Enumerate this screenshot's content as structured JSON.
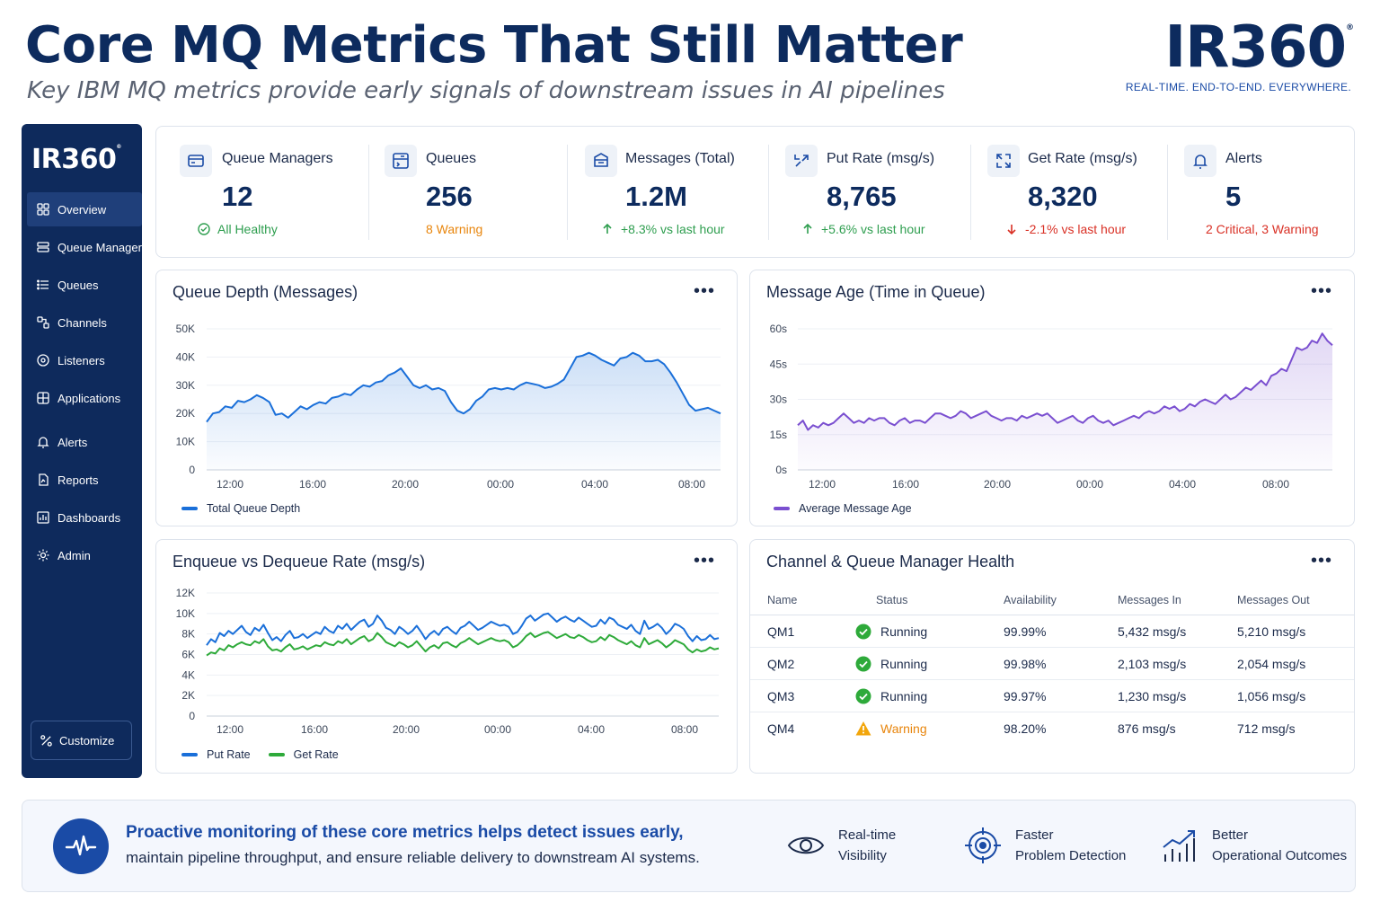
{
  "header": {
    "title": "Core MQ Metrics That Still Matter",
    "subtitle": "Key IBM MQ metrics provide early signals of downstream issues in AI pipelines",
    "brand": "IR360",
    "tagline": "REAL-TIME. END-TO-END. EVERYWHERE."
  },
  "sidebar": {
    "logo": "IR360",
    "items": [
      {
        "label": "Overview",
        "icon": "overview-icon",
        "active": true
      },
      {
        "label": "Queue Managers",
        "icon": "queue-managers-icon"
      },
      {
        "label": "Queues",
        "icon": "queues-icon"
      },
      {
        "label": "Channels",
        "icon": "channels-icon"
      },
      {
        "label": "Listeners",
        "icon": "listeners-icon"
      },
      {
        "label": "Applications",
        "icon": "applications-icon"
      },
      {
        "label": "Alerts",
        "icon": "bell-icon"
      },
      {
        "label": "Reports",
        "icon": "reports-icon"
      },
      {
        "label": "Dashboards",
        "icon": "dashboards-icon"
      },
      {
        "label": "Admin",
        "icon": "gear-icon"
      }
    ],
    "customize": "Customize"
  },
  "kpis": [
    {
      "label": "Queue Managers",
      "value": "12",
      "status": "All Healthy",
      "status_color": "#2e9e4f",
      "status_icon": "check-circle-icon"
    },
    {
      "label": "Queues",
      "value": "256",
      "status": "8 Warning",
      "status_color": "#e8850c",
      "status_icon": ""
    },
    {
      "label": "Messages (Total)",
      "value": "1.2M",
      "status": "+8.3% vs last hour",
      "status_color": "#2e9e4f",
      "status_icon": "arrow-up-icon"
    },
    {
      "label": "Put Rate (msg/s)",
      "value": "8,765",
      "status": "+5.6% vs last hour",
      "status_color": "#2e9e4f",
      "status_icon": "arrow-up-icon"
    },
    {
      "label": "Get Rate (msg/s)",
      "value": "8,320",
      "status": "-2.1% vs last hour",
      "status_color": "#d93025",
      "status_icon": "arrow-down-icon"
    },
    {
      "label": "Alerts",
      "value": "5",
      "status": "2 Critical, 3 Warning",
      "status_color": "#d93025",
      "status_icon": ""
    }
  ],
  "colors": {
    "navy": "#0e2a5c",
    "blue": "#1a6fd9",
    "purple": "#7a4fd0",
    "green": "#2eaa3a",
    "warning": "#f2a60c"
  },
  "chart_data": [
    {
      "type": "area",
      "title": "Queue Depth (Messages)",
      "x_ticks": [
        "12:00",
        "16:00",
        "20:00",
        "00:00",
        "04:00",
        "08:00"
      ],
      "y_ticks": [
        "0",
        "10K",
        "20K",
        "30K",
        "40K",
        "50K"
      ],
      "ylim": [
        0,
        50000
      ],
      "series": [
        {
          "name": "Total Queue Depth",
          "color": "#1a6fd9",
          "values": [
            17000,
            20000,
            20500,
            22500,
            22000,
            24500,
            24000,
            25000,
            26500,
            25500,
            24000,
            19500,
            20000,
            18500,
            20500,
            22500,
            21500,
            23000,
            24000,
            23500,
            25500,
            26000,
            27000,
            26500,
            28500,
            30000,
            29500,
            31000,
            31500,
            33500,
            34500,
            36000,
            33000,
            30000,
            29000,
            30000,
            28500,
            29000,
            28000,
            24000,
            21000,
            20000,
            21500,
            24500,
            26000,
            28500,
            29000,
            28500,
            29000,
            28500,
            30000,
            31000,
            30500,
            30000,
            29000,
            29500,
            30500,
            32000,
            36000,
            40000,
            40500,
            41500,
            40500,
            39000,
            38000,
            37000,
            39500,
            40000,
            41500,
            40500,
            38500,
            38500,
            39000,
            37500,
            34500,
            31000,
            27000,
            23000,
            21000,
            21500,
            22000,
            21000,
            20000
          ]
        }
      ]
    },
    {
      "type": "area",
      "title": "Message Age (Time in Queue)",
      "x_ticks": [
        "12:00",
        "16:00",
        "20:00",
        "00:00",
        "04:00",
        "08:00"
      ],
      "y_ticks": [
        "0s",
        "15s",
        "30s",
        "45s",
        "60s"
      ],
      "ylim": [
        0,
        60
      ],
      "series": [
        {
          "name": "Average Message Age",
          "color": "#7a4fd0",
          "values": [
            19,
            21,
            17,
            19,
            18,
            20,
            19,
            20,
            22,
            24,
            22,
            20,
            21,
            20,
            22,
            21,
            22,
            22,
            20,
            19,
            21,
            22,
            20,
            21,
            21,
            20,
            22,
            24,
            24,
            23,
            22,
            23,
            25,
            24,
            22,
            23,
            24,
            25,
            23,
            22,
            21,
            22,
            22,
            21,
            23,
            22,
            23,
            24,
            23,
            24,
            22,
            20,
            21,
            22,
            23,
            21,
            20,
            22,
            23,
            21,
            20,
            21,
            19,
            20,
            21,
            22,
            23,
            22,
            24,
            25,
            24,
            25,
            27,
            26,
            27,
            25,
            26,
            28,
            27,
            29,
            30,
            29,
            28,
            30,
            32,
            30,
            31,
            33,
            35,
            34,
            36,
            38,
            36,
            40,
            41,
            43,
            42,
            47,
            52,
            51,
            52,
            55,
            54,
            58,
            55,
            53
          ]
        }
      ]
    },
    {
      "type": "line",
      "title": "Enqueue vs Dequeue Rate (msg/s)",
      "x_ticks": [
        "12:00",
        "16:00",
        "20:00",
        "00:00",
        "04:00",
        "08:00"
      ],
      "y_ticks": [
        "0",
        "2K",
        "4K",
        "6K",
        "8K",
        "10K",
        "12K"
      ],
      "ylim": [
        0,
        12000
      ],
      "series": [
        {
          "name": "Put Rate",
          "color": "#1a6fd9",
          "values": [
            6900,
            7500,
            7200,
            8100,
            7800,
            8300,
            8000,
            8400,
            8800,
            8200,
            7900,
            8600,
            8300,
            8900,
            8100,
            7400,
            7700,
            7300,
            7900,
            8300,
            7600,
            7700,
            8000,
            7600,
            7900,
            8200,
            8000,
            8700,
            8300,
            8100,
            8800,
            8500,
            9000,
            8400,
            8800,
            9200,
            9400,
            8700,
            9000,
            9800,
            9300,
            8600,
            8400,
            8000,
            8700,
            8400,
            8000,
            8300,
            8800,
            8200,
            7500,
            8000,
            8300,
            7900,
            8500,
            8700,
            8300,
            8000,
            8600,
            8800,
            9200,
            8800,
            8400,
            8600,
            8900,
            9200,
            9000,
            8800,
            8900,
            8700,
            8000,
            8200,
            8800,
            9500,
            9800,
            9300,
            9600,
            9900,
            10000,
            9600,
            9200,
            9500,
            9700,
            9400,
            9200,
            9600,
            9300,
            9000,
            8700,
            8800,
            9400,
            9000,
            9600,
            9400,
            8900,
            8700,
            8500,
            8900,
            8300,
            8000,
            9300,
            8500,
            8700,
            9000,
            8600,
            8000,
            8400,
            9000,
            8800,
            8500,
            7800,
            7300,
            7800,
            7400,
            7500,
            7900,
            7500,
            7600
          ]
        },
        {
          "name": "Get Rate",
          "color": "#2eaa3a",
          "values": [
            5900,
            6200,
            6100,
            6600,
            6400,
            6900,
            6700,
            7000,
            7200,
            7000,
            6900,
            7300,
            7100,
            7500,
            6800,
            6400,
            6500,
            6300,
            6700,
            7000,
            6500,
            6600,
            6800,
            6500,
            6700,
            6900,
            6800,
            7200,
            7000,
            6900,
            7300,
            7100,
            7500,
            7000,
            7300,
            7600,
            7800,
            7300,
            7500,
            8100,
            7700,
            7200,
            7000,
            6800,
            7200,
            7000,
            6700,
            6900,
            7300,
            6800,
            6300,
            6700,
            6900,
            6600,
            7100,
            7200,
            6900,
            6700,
            7100,
            7300,
            7600,
            7300,
            7000,
            7200,
            7400,
            7600,
            7400,
            7300,
            7400,
            7200,
            6700,
            6900,
            7300,
            7800,
            8100,
            7700,
            7900,
            8100,
            8200,
            7900,
            7600,
            7800,
            8000,
            7700,
            7600,
            7900,
            7700,
            7400,
            7200,
            7300,
            7700,
            7400,
            7900,
            7700,
            7400,
            7200,
            7000,
            7300,
            6900,
            6700,
            7600,
            7000,
            7200,
            7400,
            7100,
            6700,
            7000,
            7400,
            7200,
            7000,
            6500,
            6200,
            6500,
            6300,
            6400,
            6700,
            6500,
            6600
          ]
        }
      ]
    }
  ],
  "health": {
    "title": "Channel & Queue Manager Health",
    "columns": [
      "Name",
      "Status",
      "Availability",
      "Messages In",
      "Messages Out"
    ],
    "rows": [
      {
        "name": "QM1",
        "status": "Running",
        "status_type": "ok",
        "availability": "99.99%",
        "in": "5,432 msg/s",
        "out": "5,210 msg/s"
      },
      {
        "name": "QM2",
        "status": "Running",
        "status_type": "ok",
        "availability": "99.98%",
        "in": "2,103 msg/s",
        "out": "2,054 msg/s"
      },
      {
        "name": "QM3",
        "status": "Running",
        "status_type": "ok",
        "availability": "99.97%",
        "in": "1,230 msg/s",
        "out": "1,056 msg/s"
      },
      {
        "name": "QM4",
        "status": "Warning",
        "status_type": "warn",
        "availability": "98.20%",
        "in": "876 msg/s",
        "out": "712 msg/s"
      }
    ]
  },
  "banner": {
    "title": "Proactive monitoring of these core metrics helps detect issues early,",
    "text": "maintain pipeline throughput, and ensure reliable delivery to downstream AI systems.",
    "benefits": [
      {
        "line1": "Real-time",
        "line2": "Visibility",
        "icon": "eye-icon"
      },
      {
        "line1": "Faster",
        "line2": "Problem Detection",
        "icon": "target-icon"
      },
      {
        "line1": "Better",
        "line2": "Operational Outcomes",
        "icon": "growth-chart-icon"
      }
    ]
  }
}
